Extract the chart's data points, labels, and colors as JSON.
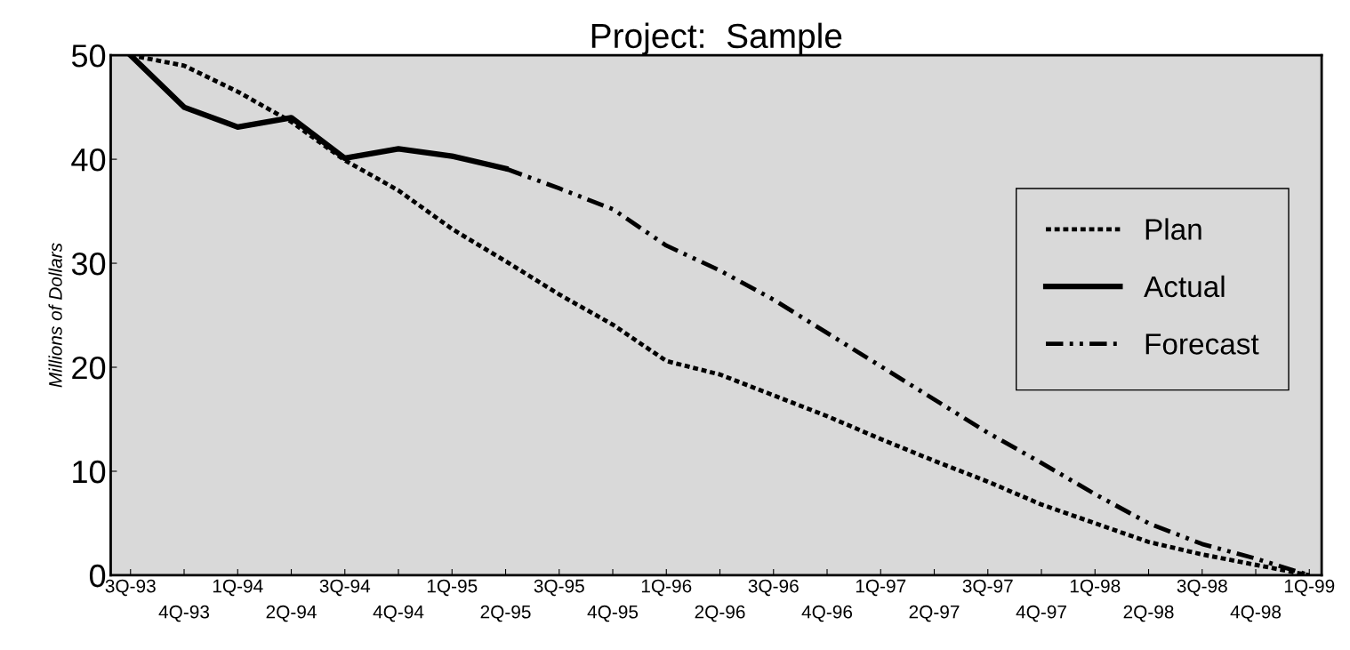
{
  "chart_data": {
    "type": "line",
    "title": "Project:  Sample",
    "ylabel": "Millions of Dollars",
    "categories": [
      "3Q-93",
      "4Q-93",
      "1Q-94",
      "2Q-94",
      "3Q-94",
      "4Q-94",
      "1Q-95",
      "2Q-95",
      "3Q-95",
      "4Q-95",
      "1Q-96",
      "2Q-96",
      "3Q-96",
      "4Q-96",
      "1Q-97",
      "2Q-97",
      "3Q-97",
      "4Q-97",
      "1Q-98",
      "2Q-98",
      "3Q-98",
      "4Q-98",
      "1Q-99"
    ],
    "series": [
      {
        "name": "Plan",
        "color": "#000000",
        "line_style": "dotted",
        "values": [
          50,
          49,
          46.5,
          43.6,
          39.9,
          37,
          33.3,
          30.2,
          27,
          24.1,
          20.6,
          19.3,
          17.3,
          15.3,
          13.1,
          11,
          9,
          6.8,
          5,
          3.2,
          2,
          1,
          0
        ]
      },
      {
        "name": "Actual",
        "color": "#000000",
        "line_style": "solid",
        "values": [
          50,
          45,
          43.1,
          44,
          40.1,
          41,
          40.3,
          39.1,
          null,
          null,
          null,
          null,
          null,
          null,
          null,
          null,
          null,
          null,
          null,
          null,
          null,
          null,
          null
        ]
      },
      {
        "name": "Forecast",
        "color": "#000000",
        "line_style": "dashdot",
        "values": [
          null,
          null,
          null,
          null,
          null,
          null,
          null,
          39.1,
          37.2,
          35.2,
          31.7,
          29.3,
          26.5,
          23.3,
          20.1,
          16.9,
          13.7,
          10.8,
          7.8,
          5,
          3,
          1.6,
          0
        ]
      }
    ],
    "ylim": [
      0,
      50
    ],
    "yticks": [
      0,
      10,
      20,
      30,
      40,
      50
    ],
    "grid": false,
    "legend": "right",
    "marker": "none"
  }
}
